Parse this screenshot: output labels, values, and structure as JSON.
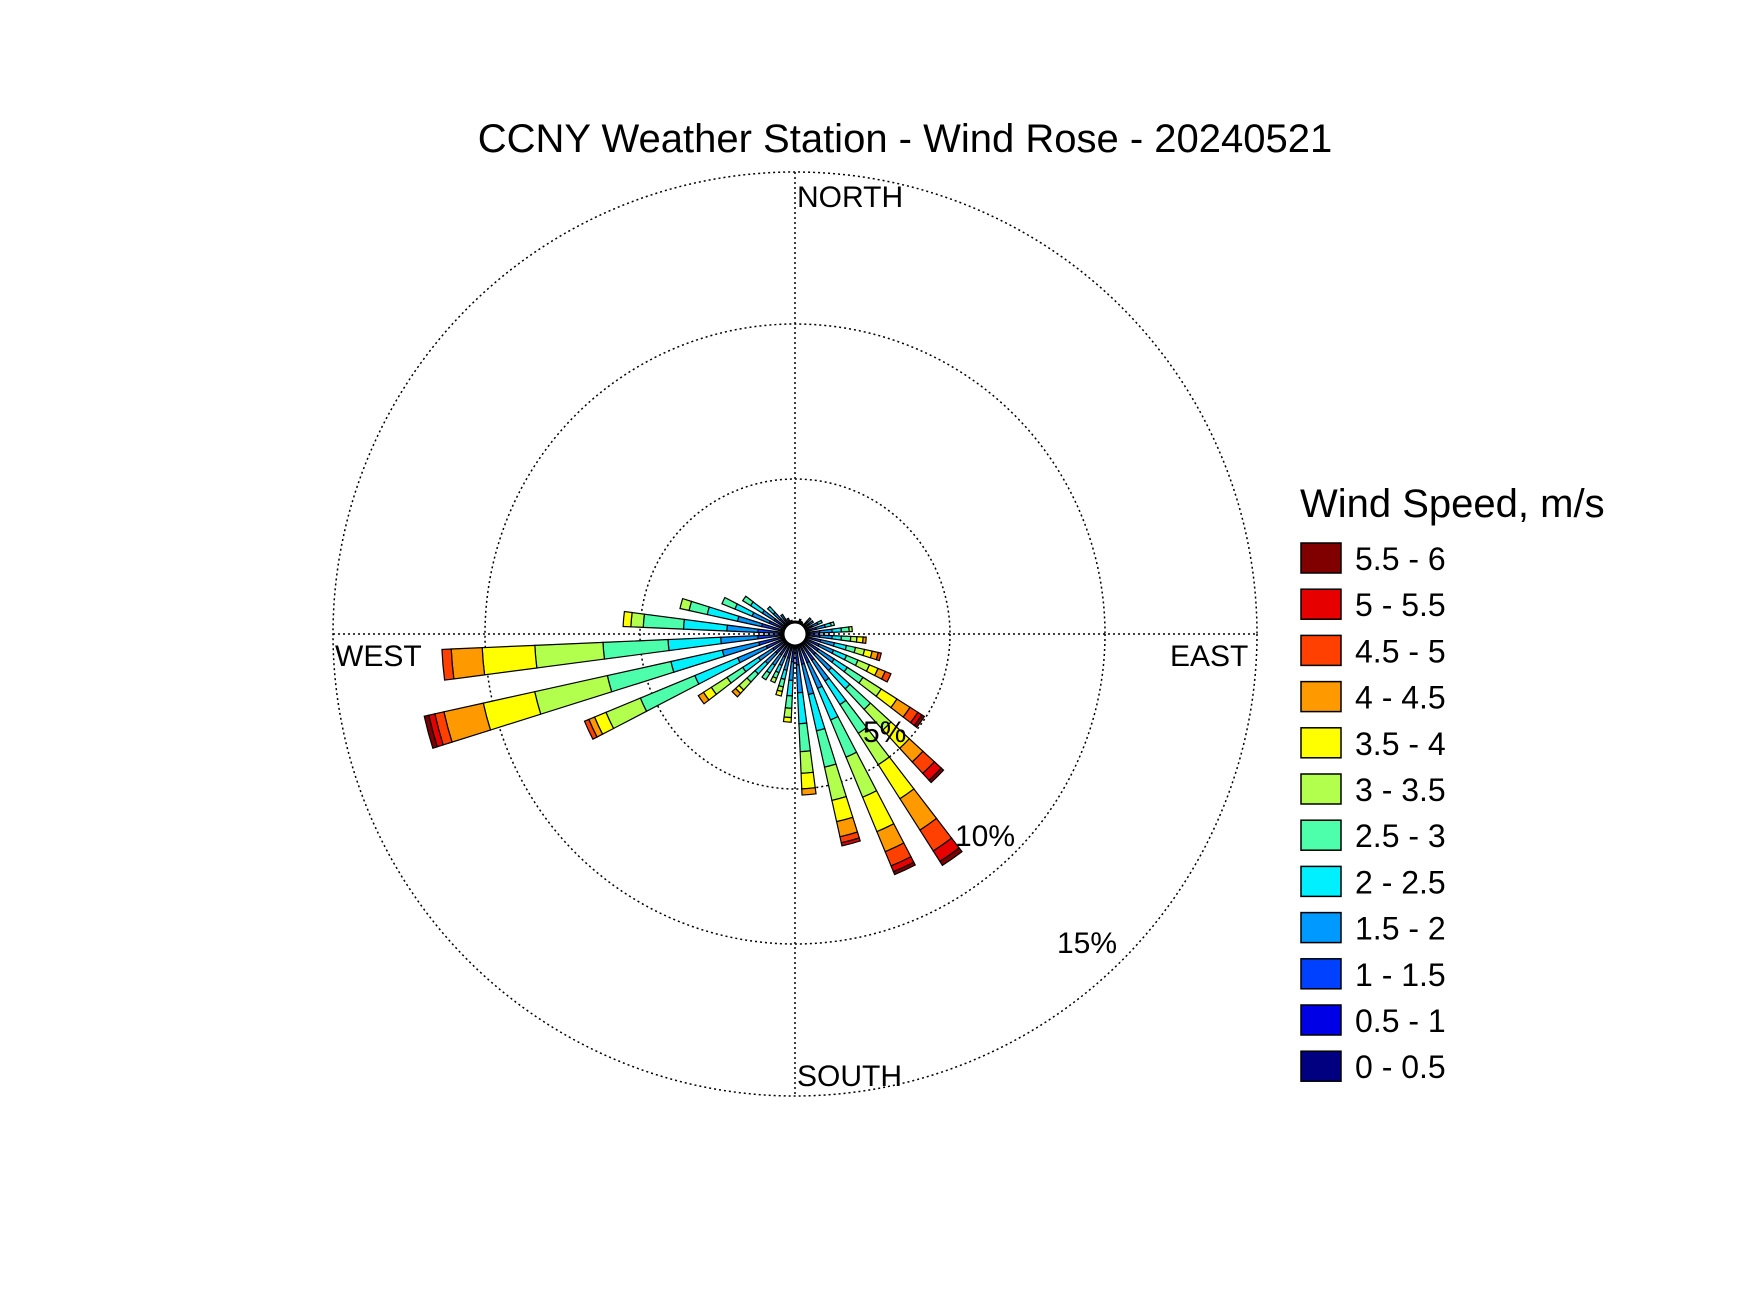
{
  "chart_data": {
    "type": "wind-rose",
    "title": "CCNY Weather Station - Wind Rose - 20240521",
    "direction_labels": {
      "north": "NORTH",
      "east": "EAST",
      "south": "SOUTH",
      "west": "WEST"
    },
    "rings": [
      {
        "value": 5,
        "label": "5%"
      },
      {
        "value": 10,
        "label": "10%"
      },
      {
        "value": 15,
        "label": "15%"
      }
    ],
    "axis_max_percent": 15,
    "calm_circle": true,
    "grid": true,
    "legend": {
      "title": "Wind Speed, m/s",
      "position": "right",
      "items": [
        {
          "label": "5.5 - 6",
          "color": "#800000"
        },
        {
          "label": "5 - 5.5",
          "color": "#e60000"
        },
        {
          "label": "4.5 - 5",
          "color": "#ff4000"
        },
        {
          "label": "4 - 4.5",
          "color": "#ff9900"
        },
        {
          "label": "3.5 - 4",
          "color": "#ffff00"
        },
        {
          "label": "3 - 3.5",
          "color": "#b2ff4d"
        },
        {
          "label": "2.5 - 3",
          "color": "#4dffaa"
        },
        {
          "label": "2 - 2.5",
          "color": "#00f0ff"
        },
        {
          "label": "1.5 - 2",
          "color": "#0099ff"
        },
        {
          "label": "1 - 1.5",
          "color": "#0040ff"
        },
        {
          "label": "0.5 - 1",
          "color": "#0000e6"
        },
        {
          "label": "0 - 0.5",
          "color": "#000080"
        }
      ]
    },
    "bin_colors_low_to_high": [
      "#000080",
      "#0000e6",
      "#0040ff",
      "#0099ff",
      "#00f0ff",
      "#4dffaa",
      "#b2ff4d",
      "#ffff00",
      "#ff9900",
      "#ff4000",
      "#e60000",
      "#800000"
    ],
    "sector_width_deg": 5,
    "sectors": [
      {
        "dir": 0,
        "cum": [
          0.15,
          0.3
        ]
      },
      {
        "dir": 10,
        "cum": [
          0.15,
          0.3,
          0.4
        ]
      },
      {
        "dir": 20,
        "cum": [
          0.15,
          0.3,
          0.45,
          0.5
        ]
      },
      {
        "dir": 30,
        "cum": [
          0.15,
          0.3,
          0.45
        ]
      },
      {
        "dir": 45,
        "cum": [
          0.15,
          0.35,
          0.55,
          0.7
        ]
      },
      {
        "dir": 55,
        "cum": [
          0.15,
          0.35,
          0.55,
          0.7
        ]
      },
      {
        "dir": 65,
        "cum": [
          0.15,
          0.35,
          0.6,
          0.8,
          0.95
        ]
      },
      {
        "dir": 75,
        "cum": [
          0.15,
          0.35,
          0.7,
          1.0,
          1.2,
          1.3
        ]
      },
      {
        "dir": 85,
        "cum": [
          0.15,
          0.4,
          0.8,
          1.2,
          1.5,
          1.75,
          1.85
        ]
      },
      {
        "dir": 95,
        "cum": [
          0.15,
          0.4,
          0.8,
          1.2,
          1.5,
          1.8,
          2.0,
          2.2,
          2.3
        ]
      },
      {
        "dir": 105,
        "cum": [
          0.15,
          0.4,
          0.85,
          1.3,
          1.7,
          2.0,
          2.3,
          2.55,
          2.75,
          2.85
        ]
      },
      {
        "dir": 115,
        "cum": [
          0.15,
          0.4,
          0.85,
          1.35,
          1.8,
          2.2,
          2.6,
          2.9,
          3.15,
          3.35
        ]
      },
      {
        "dir": 125,
        "cum": [
          0.15,
          0.4,
          0.9,
          1.5,
          2.0,
          2.6,
          3.3,
          3.9,
          4.4,
          4.7,
          4.85,
          4.95
        ]
      },
      {
        "dir": 135,
        "cum": [
          0.15,
          0.4,
          0.9,
          1.6,
          2.4,
          3.3,
          4.2,
          5.0,
          5.6,
          6.1,
          6.4,
          6.5
        ]
      },
      {
        "dir": 145,
        "cum": [
          0.15,
          0.4,
          1.0,
          1.8,
          2.7,
          3.8,
          5.0,
          6.3,
          7.5,
          8.3,
          8.7,
          8.85
        ]
      },
      {
        "dir": 155,
        "cum": [
          0.15,
          0.4,
          1.0,
          1.9,
          3.0,
          4.3,
          5.7,
          6.9,
          7.6,
          8.1,
          8.3,
          8.4
        ]
      },
      {
        "dir": 165,
        "cum": [
          0.15,
          0.4,
          1.0,
          2.0,
          3.2,
          4.4,
          5.5,
          6.2,
          6.7,
          6.9,
          7.0
        ]
      },
      {
        "dir": 175,
        "cum": [
          0.15,
          0.4,
          1.0,
          1.9,
          2.9,
          3.8,
          4.5,
          5.0,
          5.2
        ]
      },
      {
        "dir": 185,
        "cum": [
          0.15,
          0.4,
          0.9,
          1.5,
          2.0,
          2.4,
          2.7,
          2.85
        ]
      },
      {
        "dir": 195,
        "cum": [
          0.15,
          0.4,
          0.8,
          1.2,
          1.5,
          1.75,
          1.9,
          2.05
        ]
      },
      {
        "dir": 205,
        "cum": [
          0.15,
          0.4,
          0.8,
          1.1,
          1.35,
          1.55,
          1.7
        ]
      },
      {
        "dir": 215,
        "cum": [
          0.15,
          0.4,
          0.8,
          1.2,
          1.5,
          1.75
        ]
      },
      {
        "dir": 225,
        "cum": [
          0.15,
          0.4,
          0.85,
          1.3,
          1.75,
          2.1,
          2.45,
          2.6,
          2.75
        ]
      },
      {
        "dir": 235,
        "cum": [
          0.15,
          0.4,
          0.85,
          1.4,
          2.0,
          2.6,
          3.2,
          3.5,
          3.7
        ]
      },
      {
        "dir": 245,
        "cum": [
          0.15,
          0.45,
          1.0,
          2.0,
          3.5,
          5.4,
          6.6,
          7.0,
          7.2,
          7.35
        ]
      },
      {
        "dir": 255,
        "cum": [
          0.15,
          0.45,
          1.2,
          2.4,
          4.1,
          6.2,
          8.6,
          10.3,
          11.6,
          11.9,
          12.1,
          12.25
        ]
      },
      {
        "dir": 265,
        "cum": [
          0.15,
          0.45,
          1.2,
          2.4,
          4.1,
          6.2,
          8.4,
          10.1,
          11.1,
          11.4
        ]
      },
      {
        "dir": 275,
        "cum": [
          0.15,
          0.45,
          1.2,
          2.2,
          3.6,
          4.9,
          5.3,
          5.55
        ]
      },
      {
        "dir": 285,
        "cum": [
          0.15,
          0.45,
          1.1,
          1.9,
          2.9,
          3.5,
          3.8
        ]
      },
      {
        "dir": 295,
        "cum": [
          0.15,
          0.4,
          0.9,
          1.5,
          2.1,
          2.55
        ]
      },
      {
        "dir": 305,
        "cum": [
          0.15,
          0.4,
          0.8,
          1.25,
          1.7,
          2.0
        ]
      },
      {
        "dir": 315,
        "cum": [
          0.15,
          0.35,
          0.65,
          0.95,
          1.2
        ]
      },
      {
        "dir": 325,
        "cum": [
          0.15,
          0.35,
          0.55,
          0.75
        ]
      },
      {
        "dir": 335,
        "cum": [
          0.15,
          0.3,
          0.45,
          0.55
        ]
      },
      {
        "dir": 345,
        "cum": [
          0.15,
          0.3,
          0.45
        ]
      }
    ]
  }
}
